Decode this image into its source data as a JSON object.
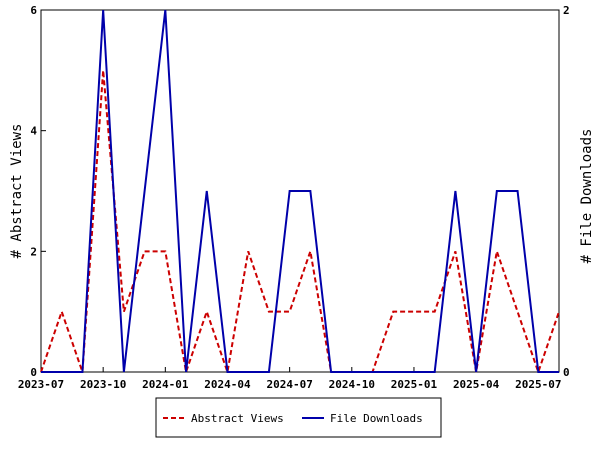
{
  "chart_data": {
    "type": "line",
    "x": [
      "2023-07",
      "2023-08",
      "2023-09",
      "2023-10",
      "2023-11",
      "2023-12",
      "2024-01",
      "2024-02",
      "2024-03",
      "2024-04",
      "2024-05",
      "2024-06",
      "2024-07",
      "2024-08",
      "2024-09",
      "2024-10",
      "2024-11",
      "2024-12",
      "2025-01",
      "2025-02",
      "2025-03",
      "2025-04",
      "2025-05",
      "2025-06",
      "2025-07",
      "2025-08"
    ],
    "x_ticks": [
      "2023-07",
      "2023-10",
      "2024-01",
      "2024-04",
      "2024-07",
      "2024-10",
      "2025-01",
      "2025-04",
      "2025-07"
    ],
    "series": [
      {
        "name": "Abstract Views",
        "axis": "left",
        "color": "#cc0000",
        "style": "dashed",
        "values": [
          0,
          1,
          0,
          5,
          1,
          2,
          2,
          0,
          1,
          0,
          2,
          1,
          1,
          2,
          0,
          0,
          0,
          1,
          1,
          1,
          2,
          0,
          2,
          1,
          0,
          1
        ]
      },
      {
        "name": "File Downloads",
        "axis": "right",
        "color": "#0000aa",
        "style": "solid",
        "values": [
          0,
          0,
          0,
          2,
          0,
          1,
          2,
          0,
          1,
          0,
          0,
          0,
          1,
          1,
          0,
          0,
          0,
          0,
          0,
          0,
          1,
          0,
          1,
          1,
          0,
          0
        ]
      }
    ],
    "ylabel_left": "# Abstract Views",
    "ylabel_right": "# File Downloads",
    "ylim_left": [
      0,
      6
    ],
    "ylim_right": [
      0,
      2
    ],
    "yticks_left": [
      0,
      2,
      4,
      6
    ],
    "yticks_right": [
      0,
      2
    ],
    "legend_position": "bottom-center"
  }
}
